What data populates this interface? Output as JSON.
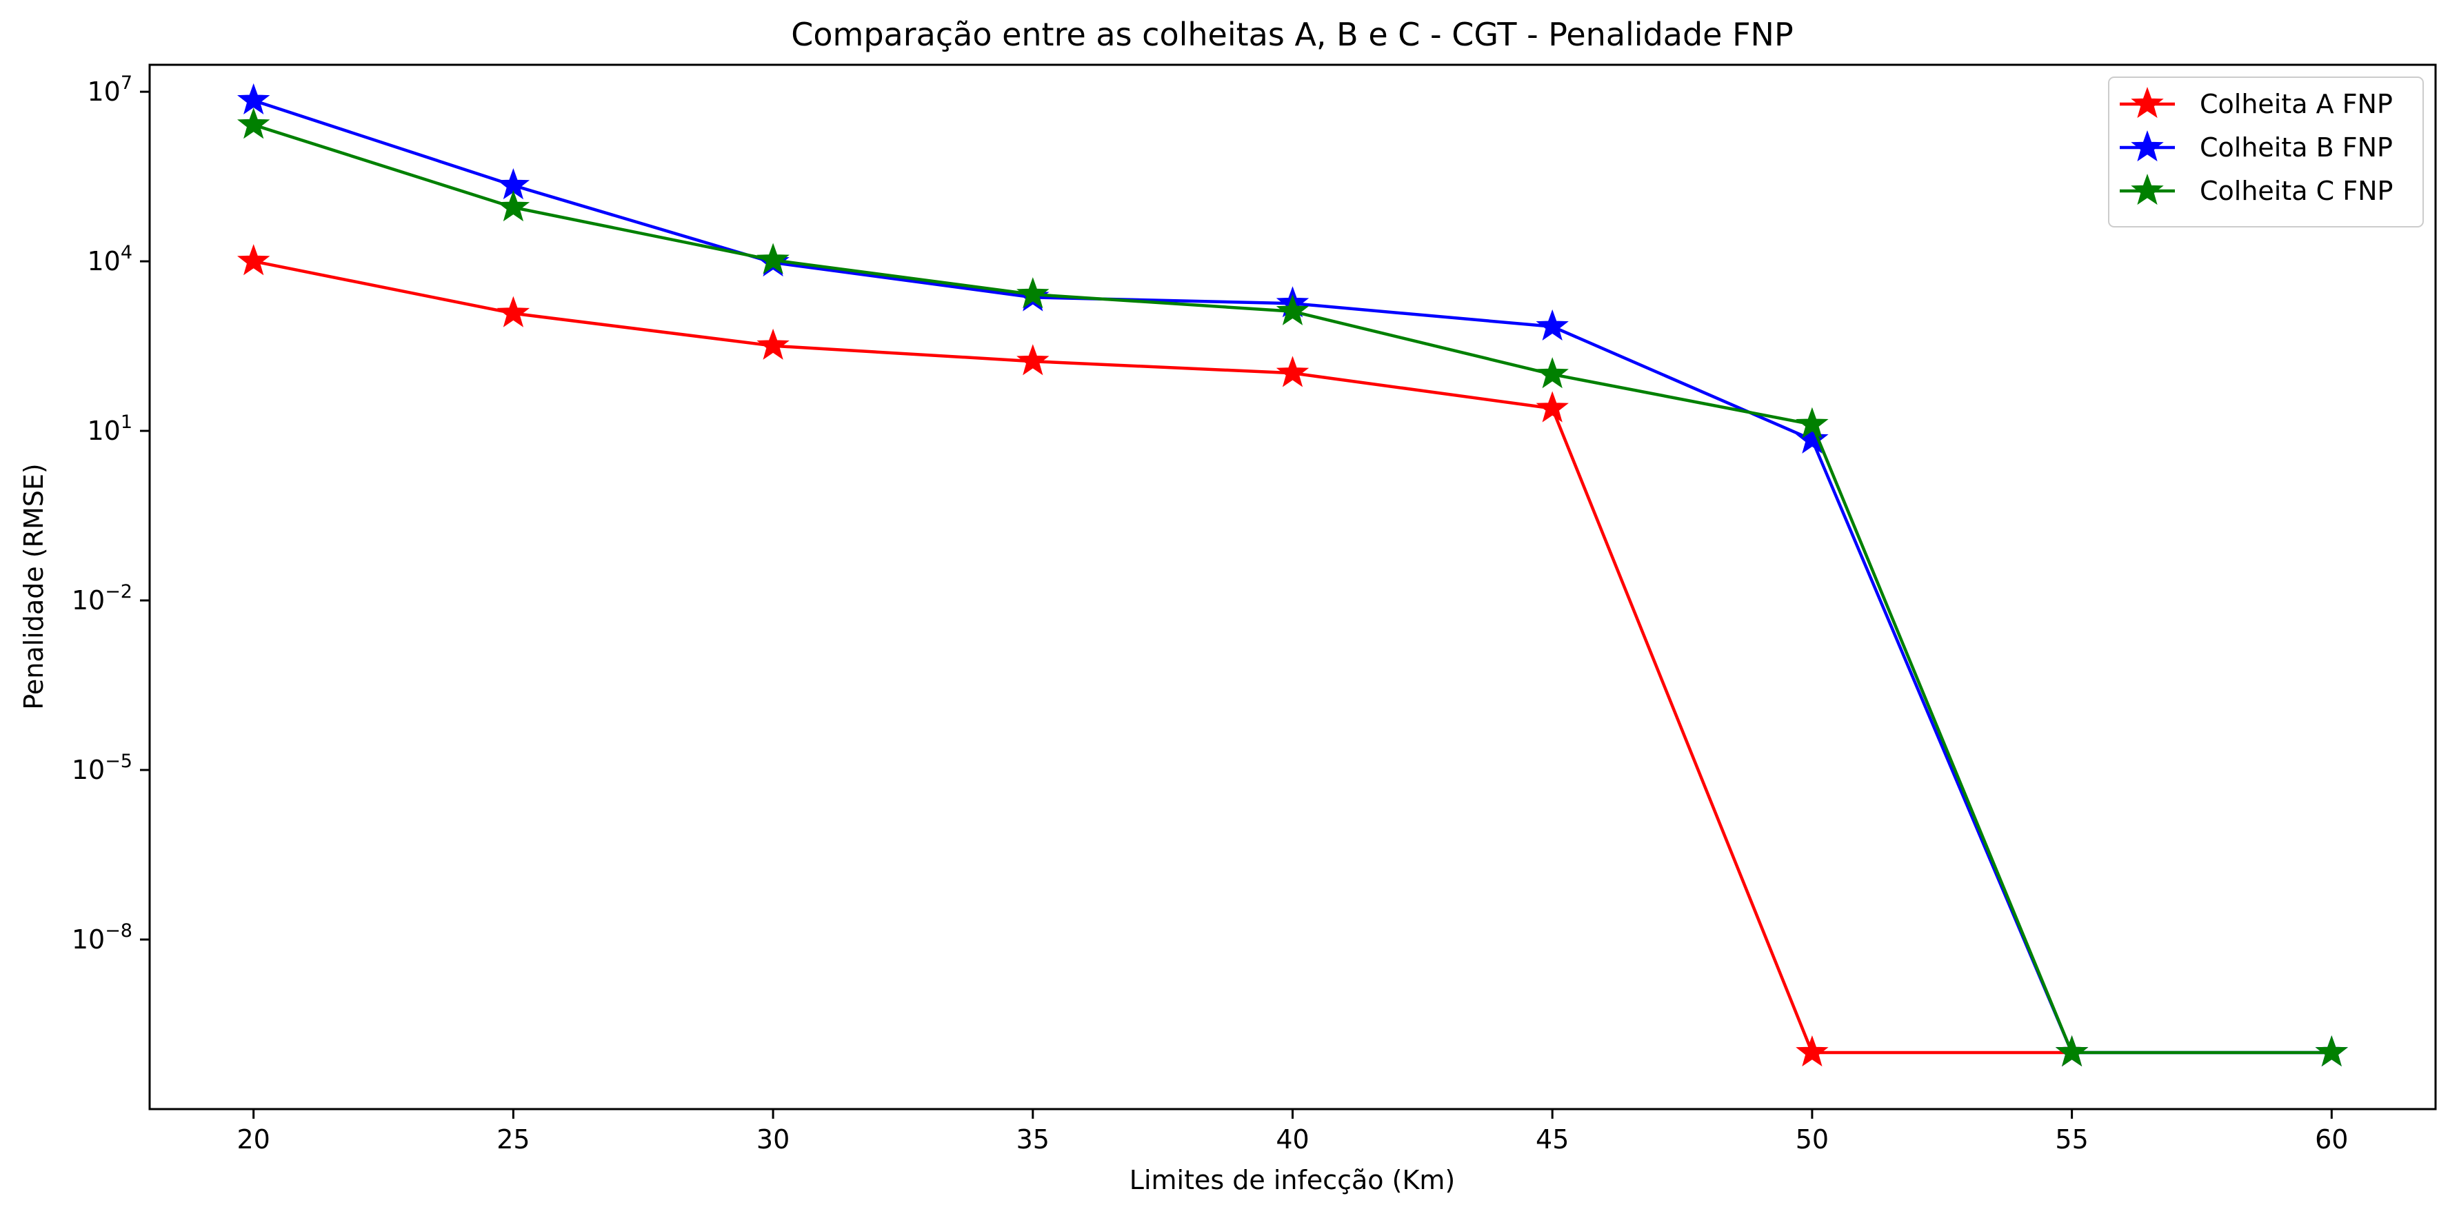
{
  "chart_data": {
    "type": "line",
    "title": "Comparação entre as colheitas A, B e C - CGT - Penalidade FNP",
    "xlabel": "Limites de infecção (Km)",
    "ylabel": "Penalidade (RMSE)",
    "x": [
      20,
      25,
      30,
      35,
      40,
      45,
      50,
      55,
      60
    ],
    "xticks": [
      20,
      25,
      30,
      35,
      40,
      45,
      50,
      55,
      60
    ],
    "xlim": [
      18,
      62
    ],
    "yscale": "log",
    "ylim": [
      1e-11,
      30000000.0
    ],
    "yticks": [
      {
        "value": 10000000.0,
        "base": "10",
        "exp": "7"
      },
      {
        "value": 10000.0,
        "base": "10",
        "exp": "4"
      },
      {
        "value": 10.0,
        "base": "10",
        "exp": "1"
      },
      {
        "value": 0.01,
        "base": "10",
        "exp": "−2"
      },
      {
        "value": 1e-05,
        "base": "10",
        "exp": "−5"
      },
      {
        "value": 1e-08,
        "base": "10",
        "exp": "−8"
      }
    ],
    "grid": false,
    "legend_position": "top-right",
    "series": [
      {
        "name": "Colheita A FNP",
        "color": "#ff0000",
        "values": [
          10000,
          1200,
          320,
          170,
          105,
          25,
          1e-10,
          1e-10,
          null
        ]
      },
      {
        "name": "Colheita B FNP",
        "color": "#0000ff",
        "values": [
          7000000,
          220000,
          9500,
          2300,
          1800,
          700,
          7,
          1e-10,
          1e-10
        ]
      },
      {
        "name": "Colheita C FNP",
        "color": "#008000",
        "values": [
          2600000,
          90000,
          10500,
          2600,
          1300,
          100,
          13,
          1e-10,
          1e-10
        ]
      }
    ]
  }
}
